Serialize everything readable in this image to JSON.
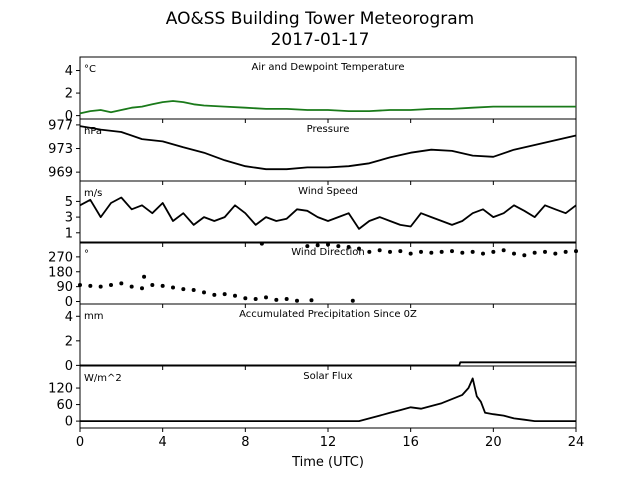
{
  "title": "AO&SS Building Tower Meteorogram",
  "subtitle": "2017-01-17",
  "xlabel": "Time (UTC)",
  "x_ticks": [
    0,
    4,
    8,
    12,
    16,
    20,
    24
  ],
  "x_tick_labels": [
    "0",
    "4",
    "8",
    "12",
    "16",
    "20",
    "24"
  ],
  "colors": {
    "temperature": "#1a7a1a",
    "line": "#000000"
  },
  "chart_data": [
    {
      "type": "line",
      "title": "Air and Dewpoint Temperature",
      "unit": "°C",
      "ylim": [
        -0.3,
        5.2
      ],
      "y_ticks": [
        0,
        2,
        4
      ],
      "series": [
        {
          "color": "#1a7a1a",
          "x": [
            0,
            0.5,
            1,
            1.5,
            2,
            2.5,
            3,
            3.5,
            4,
            4.5,
            5,
            5.5,
            6,
            7,
            8,
            9,
            10,
            11,
            12,
            13,
            14,
            15,
            16,
            17,
            18,
            19,
            20,
            21,
            22,
            23,
            24
          ],
          "values": [
            0.2,
            0.4,
            0.5,
            0.3,
            0.5,
            0.7,
            0.8,
            1.0,
            1.2,
            1.3,
            1.2,
            1.0,
            0.9,
            0.8,
            0.7,
            0.6,
            0.6,
            0.5,
            0.5,
            0.4,
            0.4,
            0.5,
            0.5,
            0.6,
            0.6,
            0.7,
            0.8,
            0.8,
            0.8,
            0.8,
            0.8
          ]
        }
      ]
    },
    {
      "type": "line",
      "title": "Pressure",
      "unit": "hPa",
      "ylim": [
        967.5,
        978
      ],
      "y_ticks": [
        969,
        973,
        977
      ],
      "series": [
        {
          "color": "#000000",
          "x": [
            0,
            1,
            2,
            3,
            4,
            5,
            6,
            7,
            8,
            9,
            10,
            11,
            12,
            13,
            14,
            15,
            16,
            17,
            18,
            19,
            20,
            21,
            22,
            23,
            24
          ],
          "values": [
            976.8,
            976.2,
            975.8,
            974.6,
            974.2,
            973.2,
            972.3,
            971.0,
            970.0,
            969.5,
            969.5,
            969.8,
            969.8,
            970.0,
            970.5,
            971.5,
            972.3,
            972.8,
            972.6,
            971.8,
            971.6,
            972.8,
            973.6,
            974.4,
            975.2
          ]
        }
      ]
    },
    {
      "type": "line",
      "title": "Wind Speed",
      "unit": "m/s",
      "ylim": [
        -0.3,
        7.6
      ],
      "y_ticks": [
        1,
        3,
        5
      ],
      "series": [
        {
          "color": "#000000",
          "x": [
            0,
            0.5,
            1,
            1.5,
            2,
            2.5,
            3,
            3.5,
            4,
            4.5,
            5,
            5.5,
            6,
            6.5,
            7,
            7.5,
            8,
            8.5,
            9,
            9.5,
            10,
            10.5,
            11,
            11.5,
            12,
            12.5,
            13,
            13.5,
            14,
            14.5,
            15,
            15.5,
            16,
            16.5,
            17,
            17.5,
            18,
            18.5,
            19,
            19.5,
            20,
            20.5,
            21,
            21.5,
            22,
            22.5,
            23,
            23.5,
            24
          ],
          "values": [
            4.5,
            5.2,
            3.0,
            4.8,
            5.5,
            4.0,
            4.5,
            3.5,
            4.8,
            2.5,
            3.5,
            2.0,
            3.0,
            2.5,
            3.0,
            4.5,
            3.5,
            2.0,
            3.0,
            2.5,
            2.8,
            4.0,
            3.8,
            3.0,
            2.5,
            3.0,
            3.5,
            1.5,
            2.5,
            3.0,
            2.5,
            2.0,
            1.8,
            3.5,
            3.0,
            2.5,
            2.0,
            2.5,
            3.5,
            4.0,
            3.0,
            3.5,
            4.5,
            3.8,
            3.0,
            4.5,
            4.0,
            3.5,
            4.5
          ]
        }
      ]
    },
    {
      "type": "scatter",
      "title": "Wind Direction",
      "unit": "°",
      "ylim": [
        -15,
        360
      ],
      "y_ticks": [
        0,
        90,
        180,
        270
      ],
      "series": [
        {
          "color": "#000000",
          "x": [
            0,
            0.5,
            1,
            1.5,
            2,
            2.5,
            3,
            3.1,
            3.5,
            4,
            4.5,
            5,
            5.5,
            6,
            6.5,
            7,
            7.5,
            8,
            8.5,
            8.8,
            9,
            9.5,
            10,
            10.5,
            11,
            11.2,
            11.5,
            12,
            12.5,
            13,
            13.2,
            13.5,
            14,
            14.5,
            15,
            15.5,
            16,
            16.5,
            17,
            17.5,
            18,
            18.5,
            19,
            19.5,
            20,
            20.5,
            21,
            21.5,
            22,
            22.5,
            23,
            23.5,
            24
          ],
          "values": [
            100,
            95,
            90,
            100,
            110,
            90,
            80,
            150,
            100,
            95,
            85,
            75,
            70,
            55,
            40,
            45,
            35,
            20,
            15,
            350,
            25,
            10,
            15,
            5,
            335,
            8,
            340,
            345,
            335,
            330,
            5,
            320,
            300,
            310,
            300,
            305,
            290,
            300,
            295,
            300,
            305,
            295,
            300,
            290,
            300,
            310,
            290,
            280,
            295,
            300,
            290,
            300,
            305
          ]
        }
      ]
    },
    {
      "type": "line",
      "title": "Accumulated Precipitation Since 0Z",
      "unit": "mm",
      "ylim": [
        -0.05,
        5.0
      ],
      "y_ticks": [
        0,
        2,
        4
      ],
      "series": [
        {
          "color": "#000000",
          "x": [
            0,
            18.35,
            18.4,
            24
          ],
          "values": [
            0,
            0,
            0.25,
            0.25
          ]
        }
      ]
    },
    {
      "type": "line",
      "title": "Solar Flux",
      "unit": "W/m^2",
      "ylim": [
        -25,
        200
      ],
      "y_ticks": [
        0,
        60,
        120
      ],
      "series": [
        {
          "color": "#000000",
          "x": [
            0,
            13.5,
            14,
            14.5,
            15,
            15.5,
            16,
            16.5,
            17,
            17.5,
            18,
            18.5,
            18.8,
            19,
            19.2,
            19.4,
            19.6,
            20,
            20.5,
            21,
            21.5,
            22,
            23,
            24
          ],
          "values": [
            0,
            0,
            10,
            20,
            30,
            40,
            50,
            45,
            55,
            65,
            80,
            95,
            120,
            155,
            90,
            70,
            30,
            25,
            20,
            10,
            5,
            0,
            0,
            0
          ]
        }
      ]
    }
  ]
}
